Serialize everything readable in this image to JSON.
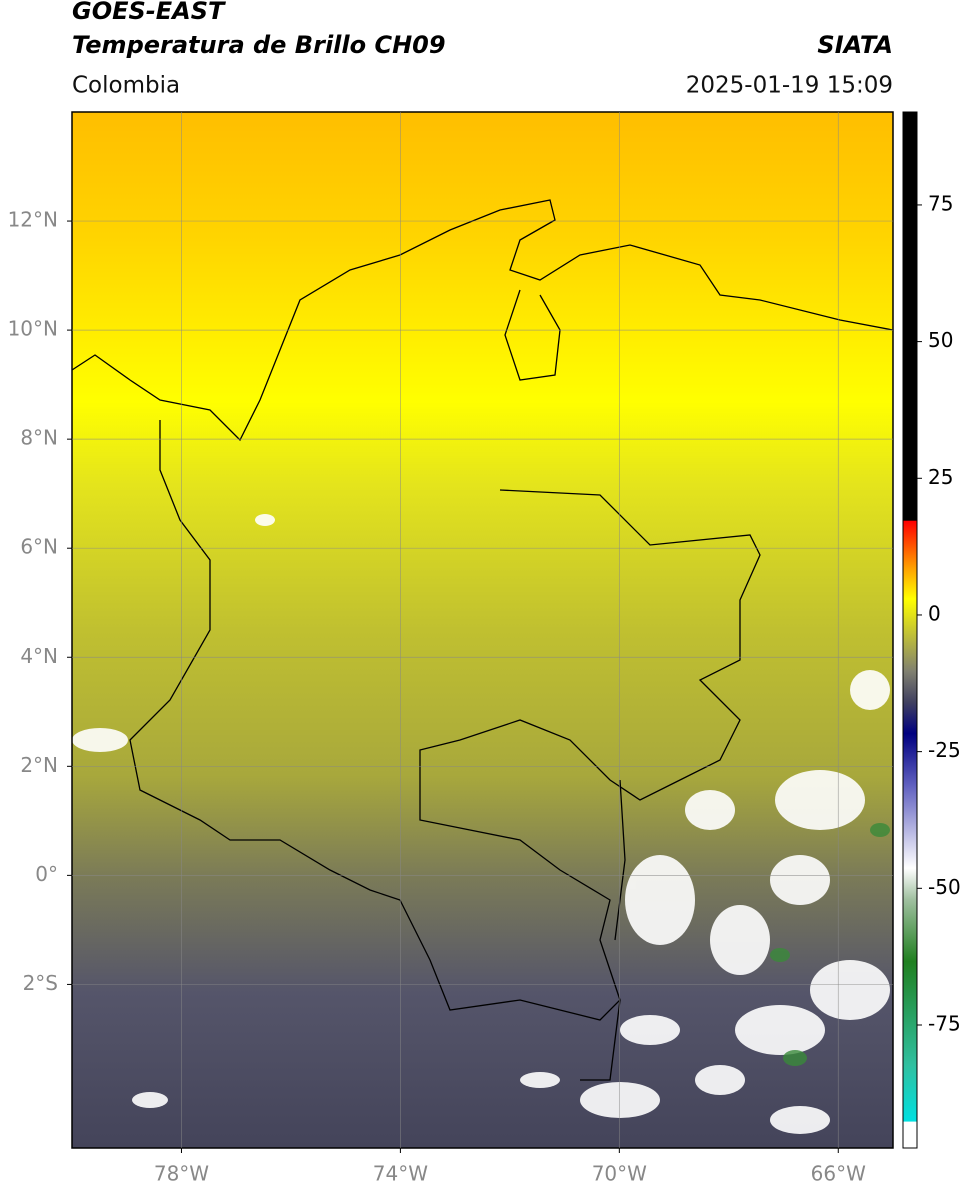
{
  "header": {
    "title": "GOES-EAST",
    "subtitle": "Temperatura de Brillo CH09",
    "source": "SIATA",
    "region": "Colombia",
    "datetime": "2025-01-19 15:09"
  },
  "map": {
    "xlim": [
      -80,
      -65
    ],
    "ylim": [
      -5,
      14
    ],
    "xticks": [
      {
        "value": -78,
        "label": "78°W"
      },
      {
        "value": -74,
        "label": "74°W"
      },
      {
        "value": -70,
        "label": "70°W"
      },
      {
        "value": -66,
        "label": "66°W"
      }
    ],
    "yticks": [
      {
        "value": 12,
        "label": "12°N"
      },
      {
        "value": 10,
        "label": "10°N"
      },
      {
        "value": 8,
        "label": "8°N"
      },
      {
        "value": 6,
        "label": "6°N"
      },
      {
        "value": 4,
        "label": "4°N"
      },
      {
        "value": 2,
        "label": "2°N"
      },
      {
        "value": 0,
        "label": "0°"
      },
      {
        "value": -2,
        "label": "2°S"
      }
    ],
    "grid": true
  },
  "colorbar": {
    "lim": [
      -97.5,
      92
    ],
    "ticks": [
      75,
      50,
      25,
      0,
      -25,
      -50,
      -75
    ]
  }
}
